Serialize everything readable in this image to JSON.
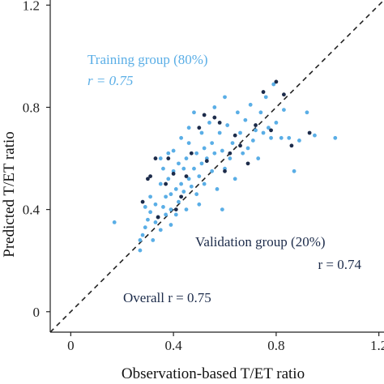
{
  "chart_data": {
    "type": "scatter",
    "xlabel": "Observation-based T/ET ratio",
    "ylabel": "Predicted T/ET ratio",
    "xlim": [
      -0.08,
      1.22
    ],
    "ylim": [
      -0.08,
      1.22
    ],
    "x_ticks": [
      "0",
      "0.4",
      "0.8",
      "1.2"
    ],
    "x_tick_values": [
      0,
      0.4,
      0.8,
      1.2
    ],
    "y_ticks": [
      "0",
      "0.4",
      "0.8",
      "1.2"
    ],
    "y_tick_values": [
      0,
      0.4,
      0.8,
      1.2
    ],
    "reference_line": "1:1 dashed",
    "grid": false,
    "colors": {
      "training": "#5aaee6",
      "validation": "#1c2b4a",
      "text_dark": "#1c2b4a",
      "axis": "#222222"
    },
    "annotations": {
      "training_label": "Training group (80%)",
      "training_r": "r = 0.75",
      "validation_label": "Validation group (20%)",
      "validation_r": "r = 0.74",
      "overall": "Overall r =  0.75"
    },
    "series": [
      {
        "name": "Training group (80%)",
        "color": "#5aaee6",
        "points": [
          [
            0.17,
            0.35
          ],
          [
            0.27,
            0.24
          ],
          [
            0.27,
            0.28
          ],
          [
            0.28,
            0.3
          ],
          [
            0.29,
            0.33
          ],
          [
            0.29,
            0.41
          ],
          [
            0.3,
            0.36
          ],
          [
            0.31,
            0.45
          ],
          [
            0.31,
            0.39
          ],
          [
            0.32,
            0.28
          ],
          [
            0.33,
            0.35
          ],
          [
            0.33,
            0.42
          ],
          [
            0.34,
            0.37
          ],
          [
            0.35,
            0.5
          ],
          [
            0.35,
            0.32
          ],
          [
            0.35,
            0.6
          ],
          [
            0.36,
            0.56
          ],
          [
            0.36,
            0.41
          ],
          [
            0.37,
            0.45
          ],
          [
            0.37,
            0.38
          ],
          [
            0.38,
            0.52
          ],
          [
            0.38,
            0.62
          ],
          [
            0.39,
            0.46
          ],
          [
            0.39,
            0.4
          ],
          [
            0.39,
            0.34
          ],
          [
            0.4,
            0.55
          ],
          [
            0.4,
            0.63
          ],
          [
            0.41,
            0.48
          ],
          [
            0.41,
            0.38
          ],
          [
            0.42,
            0.58
          ],
          [
            0.42,
            0.43
          ],
          [
            0.43,
            0.5
          ],
          [
            0.43,
            0.68
          ],
          [
            0.44,
            0.56
          ],
          [
            0.44,
            0.47
          ],
          [
            0.45,
            0.6
          ],
          [
            0.45,
            0.4
          ],
          [
            0.46,
            0.52
          ],
          [
            0.46,
            0.66
          ],
          [
            0.46,
            0.72
          ],
          [
            0.47,
            0.49
          ],
          [
            0.48,
            0.56
          ],
          [
            0.48,
            0.78
          ],
          [
            0.49,
            0.46
          ],
          [
            0.49,
            0.62
          ],
          [
            0.5,
            0.53
          ],
          [
            0.5,
            0.42
          ],
          [
            0.51,
            0.7
          ],
          [
            0.51,
            0.58
          ],
          [
            0.52,
            0.64
          ],
          [
            0.52,
            0.5
          ],
          [
            0.53,
            0.6
          ],
          [
            0.54,
            0.74
          ],
          [
            0.55,
            0.55
          ],
          [
            0.55,
            0.66
          ],
          [
            0.56,
            0.62
          ],
          [
            0.57,
            0.48
          ],
          [
            0.58,
            0.7
          ],
          [
            0.59,
            0.63
          ],
          [
            0.59,
            0.4
          ],
          [
            0.6,
            0.56
          ],
          [
            0.61,
            0.73
          ],
          [
            0.62,
            0.6
          ],
          [
            0.63,
            0.66
          ],
          [
            0.64,
            0.52
          ],
          [
            0.65,
            0.78
          ],
          [
            0.66,
            0.7
          ],
          [
            0.67,
            0.62
          ],
          [
            0.68,
            0.75
          ],
          [
            0.69,
            0.64
          ],
          [
            0.7,
            0.81
          ],
          [
            0.71,
            0.67
          ],
          [
            0.72,
            0.71
          ],
          [
            0.73,
            0.6
          ],
          [
            0.74,
            0.78
          ],
          [
            0.75,
            0.7
          ],
          [
            0.76,
            0.84
          ],
          [
            0.77,
            0.72
          ],
          [
            0.78,
            0.68
          ],
          [
            0.79,
            0.89
          ],
          [
            0.8,
            0.74
          ],
          [
            0.82,
            0.68
          ],
          [
            0.83,
            0.79
          ],
          [
            0.85,
            0.68
          ],
          [
            0.87,
            0.55
          ],
          [
            0.89,
            0.67
          ],
          [
            0.92,
            0.78
          ],
          [
            0.95,
            0.69
          ],
          [
            1.03,
            0.68
          ],
          [
            0.56,
            0.8
          ],
          [
            0.6,
            0.84
          ]
        ]
      },
      {
        "name": "Validation group (20%)",
        "color": "#1c2b4a",
        "points": [
          [
            0.28,
            0.43
          ],
          [
            0.3,
            0.52
          ],
          [
            0.31,
            0.53
          ],
          [
            0.33,
            0.6
          ],
          [
            0.34,
            0.37
          ],
          [
            0.37,
            0.5
          ],
          [
            0.38,
            0.6
          ],
          [
            0.4,
            0.54
          ],
          [
            0.41,
            0.4
          ],
          [
            0.43,
            0.45
          ],
          [
            0.45,
            0.53
          ],
          [
            0.47,
            0.62
          ],
          [
            0.5,
            0.72
          ],
          [
            0.52,
            0.77
          ],
          [
            0.53,
            0.59
          ],
          [
            0.56,
            0.76
          ],
          [
            0.58,
            0.74
          ],
          [
            0.6,
            0.55
          ],
          [
            0.62,
            0.62
          ],
          [
            0.64,
            0.69
          ],
          [
            0.66,
            0.65
          ],
          [
            0.69,
            0.58
          ],
          [
            0.72,
            0.73
          ],
          [
            0.75,
            0.86
          ],
          [
            0.78,
            0.71
          ],
          [
            0.8,
            0.9
          ],
          [
            0.83,
            0.85
          ],
          [
            0.86,
            0.65
          ],
          [
            0.93,
            0.7
          ]
        ]
      }
    ]
  }
}
